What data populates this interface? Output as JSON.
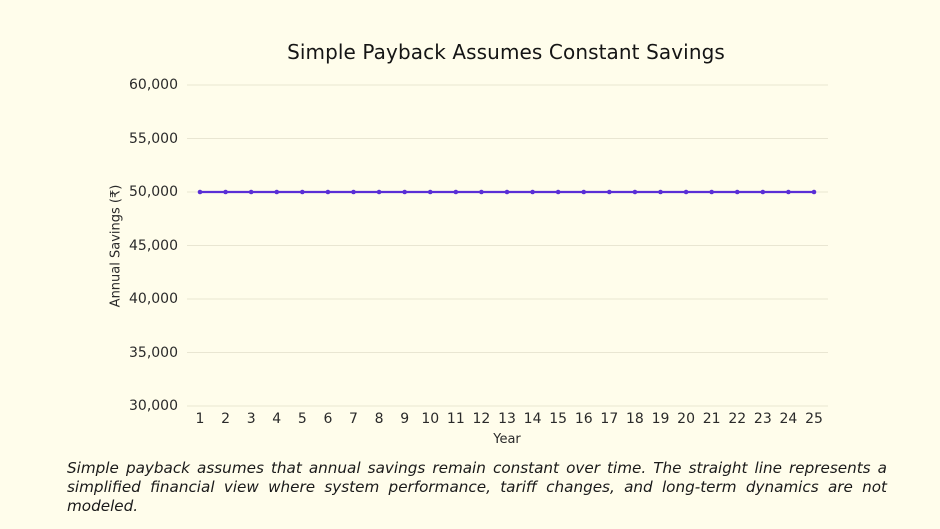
{
  "chart_data": {
    "type": "line",
    "title": "Simple Payback Assumes Constant Savings",
    "xlabel": "Year",
    "ylabel": "Annual Savings (₹)",
    "x": [
      1,
      2,
      3,
      4,
      5,
      6,
      7,
      8,
      9,
      10,
      11,
      12,
      13,
      14,
      15,
      16,
      17,
      18,
      19,
      20,
      21,
      22,
      23,
      24,
      25
    ],
    "series": [
      {
        "name": "Annual Savings",
        "color": "#5a2fd6",
        "values": [
          50000,
          50000,
          50000,
          50000,
          50000,
          50000,
          50000,
          50000,
          50000,
          50000,
          50000,
          50000,
          50000,
          50000,
          50000,
          50000,
          50000,
          50000,
          50000,
          50000,
          50000,
          50000,
          50000,
          50000,
          50000
        ]
      }
    ],
    "ylim": [
      30000,
      60000
    ],
    "yticks": [
      60000,
      55000,
      50000,
      45000,
      40000,
      35000,
      30000
    ],
    "ytick_labels": [
      "60,000",
      "55,000",
      "50,000",
      "45,000",
      "40,000",
      "35,000",
      "30,000"
    ],
    "xtick_labels": [
      "1",
      "2",
      "3",
      "4",
      "5",
      "6",
      "7",
      "8",
      "9",
      "10",
      "11",
      "12",
      "13",
      "14",
      "15",
      "16",
      "17",
      "18",
      "19",
      "20",
      "21",
      "22",
      "23",
      "24",
      "25"
    ],
    "grid": true,
    "legend": "none"
  },
  "caption": "Simple payback assumes that annual savings remain constant over time. The straight line represents a simplified financial view where system performance, tariff changes, and long-term dynamics are not modeled.",
  "colors": {
    "background": "#fffdeb",
    "line": "#5a2fd6",
    "grid": "#e9e6d2"
  }
}
